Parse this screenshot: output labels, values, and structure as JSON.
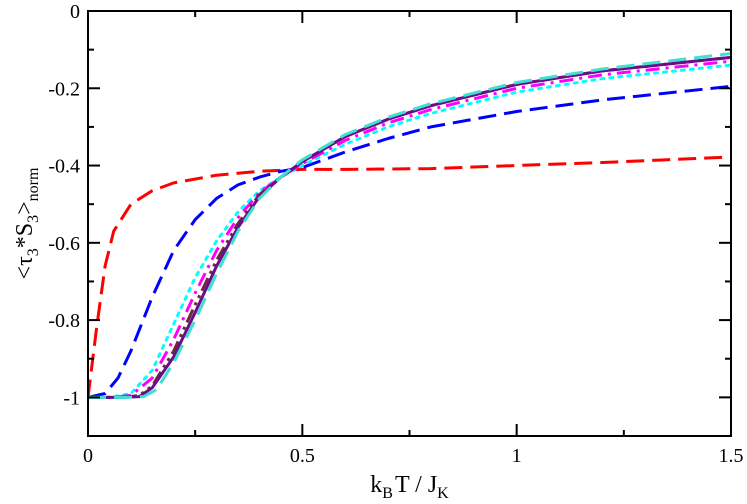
{
  "chart_data": {
    "type": "line",
    "title": "",
    "xlabel": {
      "base1": "k",
      "sub1": "B",
      "base2": "T / J",
      "sub2": "K",
      "text": "k_B T / J_K"
    },
    "ylabel": {
      "open": "<τ",
      "sub1": "3",
      "mid": "*S",
      "sub2": "3",
      "close": ">",
      "sub3": "norm",
      "text": "<τ_3*S_3>_norm"
    },
    "xlim": [
      0,
      1.5
    ],
    "ylim": [
      -1.1,
      0
    ],
    "xticks": [
      0,
      0.5,
      1,
      1.5
    ],
    "xtick_labels": [
      "0",
      "0.5",
      "1",
      "1.5"
    ],
    "yticks": [
      0,
      -0.2,
      -0.4,
      -0.6,
      -0.8,
      -1
    ],
    "ytick_labels": [
      "0",
      "-0.2",
      "-0.4",
      "-0.6",
      "-0.8",
      "-1"
    ],
    "grid": false,
    "legend": "none",
    "series": [
      {
        "name": "red dashed",
        "color": "#ff0000",
        "dash": "long-dash",
        "x": [
          0.0,
          0.02,
          0.04,
          0.06,
          0.08,
          0.1,
          0.15,
          0.2,
          0.3,
          0.4,
          0.5,
          0.6,
          0.8,
          1.0,
          1.2,
          1.5
        ],
        "y": [
          -1.0,
          -0.82,
          -0.66,
          -0.57,
          -0.535,
          -0.5,
          -0.465,
          -0.445,
          -0.425,
          -0.415,
          -0.41,
          -0.41,
          -0.408,
          -0.4,
          -0.392,
          -0.378
        ]
      },
      {
        "name": "blue dashed",
        "color": "#0000ff",
        "dash": "long-dash",
        "x": [
          0.0,
          0.04,
          0.07,
          0.1,
          0.15,
          0.2,
          0.25,
          0.3,
          0.35,
          0.4,
          0.45,
          0.5,
          0.55,
          0.6,
          0.7,
          0.8,
          1.0,
          1.2,
          1.5
        ],
        "y": [
          -1.0,
          -0.99,
          -0.95,
          -0.88,
          -0.74,
          -0.62,
          -0.54,
          -0.485,
          -0.45,
          -0.43,
          -0.415,
          -0.405,
          -0.385,
          -0.365,
          -0.33,
          -0.3,
          -0.26,
          -0.23,
          -0.195
        ]
      },
      {
        "name": "cyan dotted",
        "color": "#00ffff",
        "dash": "dotted",
        "x": [
          0.0,
          0.05,
          0.1,
          0.15,
          0.2,
          0.25,
          0.3,
          0.35,
          0.4,
          0.45,
          0.5,
          0.6,
          0.7,
          0.8,
          1.0,
          1.2,
          1.5
        ],
        "y": [
          -1.0,
          -1.0,
          -0.99,
          -0.93,
          -0.81,
          -0.69,
          -0.595,
          -0.52,
          -0.465,
          -0.43,
          -0.4,
          -0.345,
          -0.3,
          -0.265,
          -0.21,
          -0.175,
          -0.14
        ]
      },
      {
        "name": "magenta dash-dot",
        "color": "#ff00ff",
        "dash": "dash-dot",
        "x": [
          0.0,
          0.06,
          0.1,
          0.15,
          0.2,
          0.25,
          0.3,
          0.35,
          0.4,
          0.45,
          0.5,
          0.6,
          0.7,
          0.8,
          1.0,
          1.2,
          1.5
        ],
        "y": [
          -1.0,
          -1.0,
          -0.995,
          -0.95,
          -0.85,
          -0.73,
          -0.62,
          -0.535,
          -0.47,
          -0.43,
          -0.395,
          -0.335,
          -0.29,
          -0.255,
          -0.2,
          -0.165,
          -0.13
        ]
      },
      {
        "name": "dark dash-dot-dot",
        "color": "#6b2a3a",
        "dash": "dash-dot-dot",
        "x": [
          0.0,
          0.08,
          0.12,
          0.15,
          0.2,
          0.25,
          0.3,
          0.35,
          0.4,
          0.45,
          0.5,
          0.6,
          0.7,
          0.8,
          1.0,
          1.2,
          1.5
        ],
        "y": [
          -1.0,
          -1.0,
          -0.995,
          -0.97,
          -0.88,
          -0.76,
          -0.645,
          -0.55,
          -0.475,
          -0.43,
          -0.39,
          -0.325,
          -0.28,
          -0.245,
          -0.19,
          -0.155,
          -0.12
        ]
      },
      {
        "name": "purple solid",
        "color": "#6a0d8a",
        "dash": "solid",
        "x": [
          0.0,
          0.08,
          0.12,
          0.15,
          0.2,
          0.25,
          0.3,
          0.35,
          0.4,
          0.45,
          0.5,
          0.6,
          0.7,
          0.8,
          1.0,
          1.2,
          1.5
        ],
        "y": [
          -1.0,
          -1.0,
          -0.998,
          -0.975,
          -0.895,
          -0.78,
          -0.66,
          -0.56,
          -0.48,
          -0.43,
          -0.39,
          -0.325,
          -0.28,
          -0.245,
          -0.19,
          -0.155,
          -0.12
        ]
      },
      {
        "name": "turquoise dashed",
        "color": "#40e0d0",
        "dash": "long-dash",
        "x": [
          0.0,
          0.09,
          0.13,
          0.16,
          0.2,
          0.25,
          0.3,
          0.35,
          0.4,
          0.45,
          0.5,
          0.6,
          0.7,
          0.8,
          1.0,
          1.2,
          1.5
        ],
        "y": [
          -1.0,
          -1.0,
          -0.998,
          -0.98,
          -0.91,
          -0.8,
          -0.68,
          -0.57,
          -0.485,
          -0.43,
          -0.385,
          -0.32,
          -0.275,
          -0.24,
          -0.185,
          -0.15,
          -0.11
        ]
      }
    ]
  }
}
